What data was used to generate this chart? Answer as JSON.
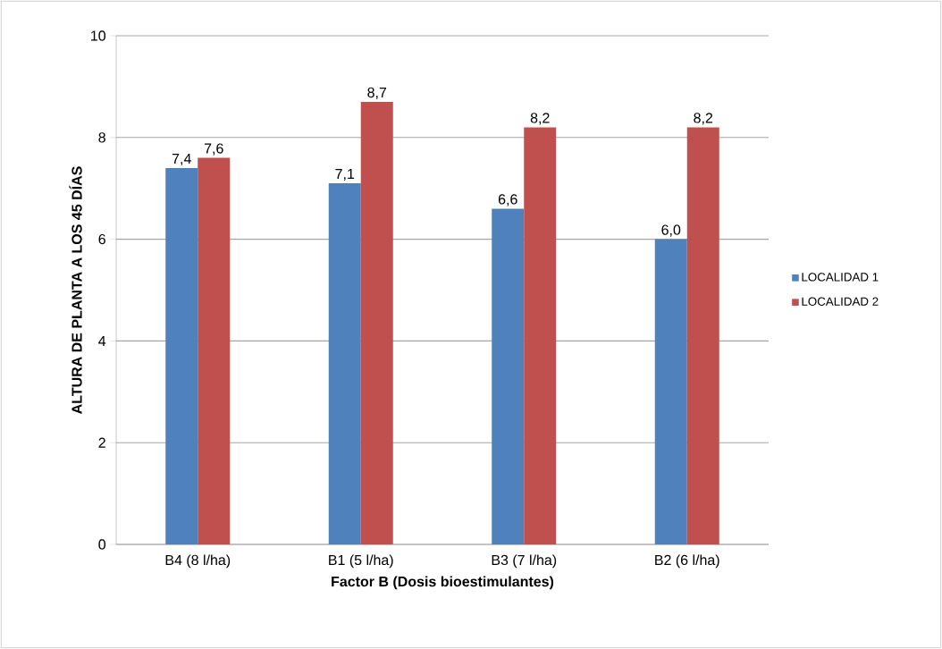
{
  "chart_data": {
    "type": "bar",
    "xlabel": "Factor B (Dosis bioestimulantes)",
    "ylabel": "ALTURA DE PLANTA A LOS 45 DÍAS",
    "categories": [
      "B4 (8 l/ha)",
      "B1 (5 l/ha)",
      "B3 (7 l/ha)",
      "B2 (6 l/ha)"
    ],
    "series": [
      {
        "name": "LOCALIDAD 1",
        "color": "#4f81bd",
        "values": [
          7.4,
          7.1,
          6.6,
          6.0
        ],
        "value_labels": [
          "7,4",
          "7,1",
          "6,6",
          "6,0"
        ]
      },
      {
        "name": "LOCALIDAD 2",
        "color": "#c0504d",
        "values": [
          7.6,
          8.7,
          8.2,
          8.2
        ],
        "value_labels": [
          "7,6",
          "8,7",
          "8,2",
          "8,2"
        ]
      }
    ],
    "ylim": [
      0,
      10
    ],
    "yticks": [
      0,
      2,
      4,
      6,
      8,
      10
    ],
    "grid": "y",
    "legend": "right"
  }
}
